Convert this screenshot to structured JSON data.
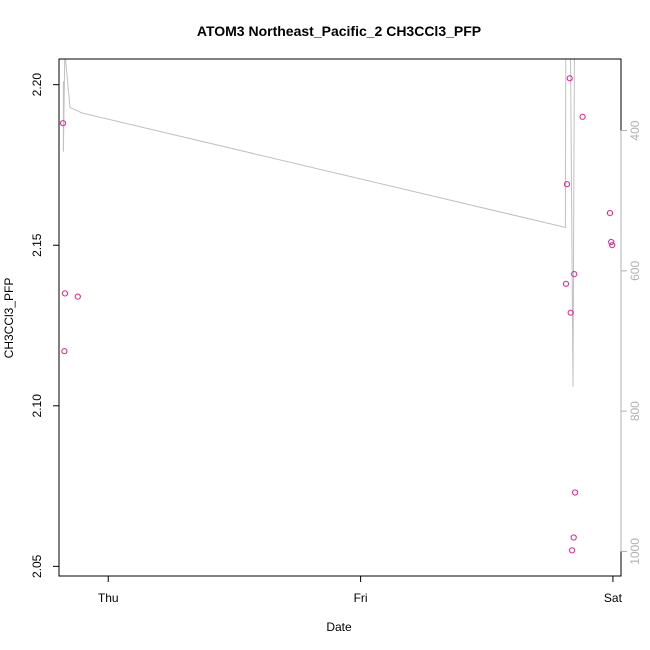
{
  "chart_data": {
    "type": "scatter",
    "title": "ATOM3 Northeast_Pacific_2 CH3CCl3_PFP",
    "xlabel": "Date",
    "ylabel": "CH3CCl3_PFP",
    "x_ticks": [
      {
        "value": "2017-10-05",
        "label": "Thu"
      },
      {
        "value": "2017-10-06",
        "label": "Fri"
      },
      {
        "value": "2017-10-07",
        "label": "Sat"
      }
    ],
    "y_ticks": [
      2.05,
      2.1,
      2.15,
      2.2
    ],
    "ylim": [
      2.047,
      2.208
    ],
    "y2_ticks": [
      400,
      600,
      800,
      1000
    ],
    "y2lim": [
      1035,
      298
    ],
    "xlim": [
      "2017-10-04T19:19",
      "2017-10-07T00:46"
    ],
    "colors": {
      "points": "#e0219a",
      "line": "#c0c0c0",
      "right_axis": "#b0b0b0"
    },
    "series": [
      {
        "values": [
          {
            "x": "2017-10-04T19:42",
            "y": 2.188
          },
          {
            "x": "2017-10-04T19:50",
            "y": 2.117
          },
          {
            "x": "2017-10-04T19:53",
            "y": 2.135
          },
          {
            "x": "2017-10-04T21:06",
            "y": 2.134
          },
          {
            "x": "2017-10-06T19:32",
            "y": 2.138
          },
          {
            "x": "2017-10-06T19:38",
            "y": 2.169
          },
          {
            "x": "2017-10-06T19:53",
            "y": 2.202
          },
          {
            "x": "2017-10-06T19:59",
            "y": 2.129
          },
          {
            "x": "2017-10-06T20:07",
            "y": 2.055
          },
          {
            "x": "2017-10-06T20:16",
            "y": 2.059
          },
          {
            "x": "2017-10-06T20:19",
            "y": 2.141
          },
          {
            "x": "2017-10-06T20:24",
            "y": 2.073
          },
          {
            "x": "2017-10-06T21:07",
            "y": 2.19
          },
          {
            "x": "2017-10-06T23:43",
            "y": 2.16
          },
          {
            "x": "2017-10-06T23:50",
            "y": 2.151
          },
          {
            "x": "2017-10-06T23:56",
            "y": 2.15
          }
        ]
      },
      {
        "axis": "right",
        "values": [
          {
            "x": "2017-10-04T19:44",
            "y": 330
          },
          {
            "x": "2017-10-04T19:44",
            "y": 430
          },
          {
            "x": "2017-10-04T19:52",
            "y": 290
          },
          {
            "x": "2017-10-04T19:53",
            "y": 290
          },
          {
            "x": "2017-10-04T20:22",
            "y": 367
          },
          {
            "x": "2017-10-04T21:30",
            "y": 375
          },
          {
            "x": "2017-10-06T19:29",
            "y": 538
          },
          {
            "x": "2017-10-06T19:31",
            "y": 290
          },
          {
            "x": "2017-10-06T19:48",
            "y": 290
          },
          {
            "x": "2017-10-06T19:58",
            "y": 290
          },
          {
            "x": "2017-10-06T20:12",
            "y": 765
          },
          {
            "x": "2017-10-06T20:20",
            "y": 290
          }
        ]
      }
    ]
  }
}
